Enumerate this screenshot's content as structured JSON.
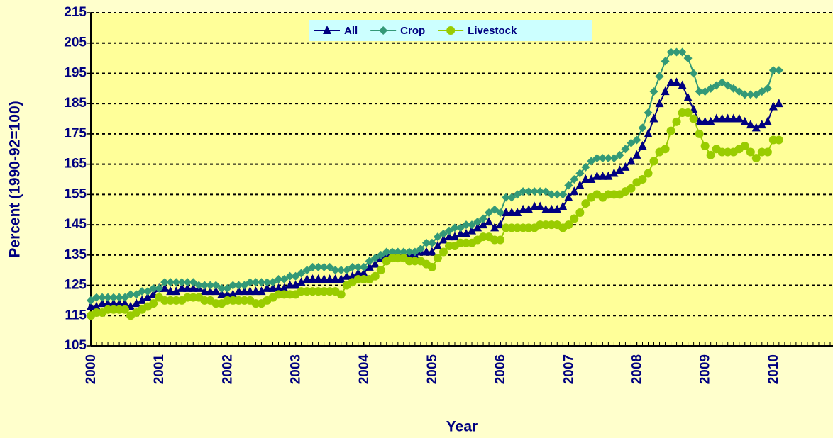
{
  "chart_data": {
    "type": "line",
    "ylabel": "Percent (1990-92=100)",
    "xlabel": "Year",
    "xlim": [
      2000,
      2010.875
    ],
    "xticks": [
      2000,
      2001,
      2002,
      2003,
      2004,
      2005,
      2006,
      2007,
      2008,
      2009,
      2010
    ],
    "ylim": [
      105,
      215
    ],
    "yticks": [
      105,
      115,
      125,
      135,
      145,
      155,
      165,
      175,
      185,
      195,
      205,
      215
    ],
    "grid": true,
    "legend": "top",
    "x": [
      2000,
      2000.083,
      2000.167,
      2000.25,
      2000.333,
      2000.417,
      2000.5,
      2000.583,
      2000.667,
      2000.75,
      2000.833,
      2000.917,
      2001,
      2001.083,
      2001.167,
      2001.25,
      2001.333,
      2001.417,
      2001.5,
      2001.583,
      2001.667,
      2001.75,
      2001.833,
      2001.917,
      2002,
      2002.083,
      2002.167,
      2002.25,
      2002.333,
      2002.417,
      2002.5,
      2002.583,
      2002.667,
      2002.75,
      2002.833,
      2002.917,
      2003,
      2003.083,
      2003.167,
      2003.25,
      2003.333,
      2003.417,
      2003.5,
      2003.583,
      2003.667,
      2003.75,
      2003.833,
      2003.917,
      2004,
      2004.083,
      2004.167,
      2004.25,
      2004.333,
      2004.417,
      2004.5,
      2004.583,
      2004.667,
      2004.75,
      2004.833,
      2004.917,
      2005,
      2005.083,
      2005.167,
      2005.25,
      2005.333,
      2005.417,
      2005.5,
      2005.583,
      2005.667,
      2005.75,
      2005.833,
      2005.917,
      2006,
      2006.083,
      2006.167,
      2006.25,
      2006.333,
      2006.417,
      2006.5,
      2006.583,
      2006.667,
      2006.75,
      2006.833,
      2006.917,
      2007,
      2007.083,
      2007.167,
      2007.25,
      2007.333,
      2007.417,
      2007.5,
      2007.583,
      2007.667,
      2007.75,
      2007.833,
      2007.917,
      2008,
      2008.083,
      2008.167,
      2008.25,
      2008.333,
      2008.417,
      2008.5,
      2008.583,
      2008.667,
      2008.75,
      2008.833,
      2008.917,
      2009,
      2009.083,
      2009.167,
      2009.25,
      2009.333,
      2009.417,
      2009.5,
      2009.583,
      2009.667,
      2009.75,
      2009.833,
      2009.917,
      2010,
      2010.083
    ],
    "series": [
      {
        "name": "All",
        "color": "#000080",
        "marker": "triangle",
        "values": [
          118,
          118,
          119,
          119,
          119,
          119,
          119,
          118,
          119,
          120,
          121,
          122,
          124,
          124,
          123,
          123,
          124,
          124,
          124,
          124,
          123,
          123,
          123,
          122,
          122,
          122,
          123,
          123,
          123,
          123,
          123,
          124,
          124,
          124,
          124,
          125,
          125,
          126,
          127,
          127,
          127,
          127,
          127,
          127,
          127,
          128,
          128,
          129,
          129,
          131,
          132,
          134,
          135,
          135,
          135,
          135,
          135,
          135,
          136,
          136,
          136,
          138,
          140,
          141,
          141,
          142,
          142,
          143,
          144,
          145,
          146,
          144,
          145,
          149,
          149,
          149,
          150,
          150,
          151,
          151,
          150,
          150,
          150,
          151,
          154,
          156,
          158,
          160,
          160,
          161,
          161,
          161,
          162,
          163,
          164,
          166,
          168,
          171,
          175,
          180,
          185,
          189,
          192,
          192,
          191,
          187,
          183,
          179,
          179,
          179,
          180,
          180,
          180,
          180,
          180,
          179,
          178,
          177,
          178,
          179,
          184,
          185
        ]
      },
      {
        "name": "Crop",
        "color": "#339977",
        "marker": "diamond",
        "values": [
          120,
          121,
          121,
          121,
          121,
          121,
          121,
          122,
          122,
          123,
          123,
          124,
          124,
          126,
          126,
          126,
          126,
          126,
          126,
          125,
          125,
          125,
          125,
          124,
          124,
          125,
          125,
          125,
          126,
          126,
          126,
          126,
          126,
          127,
          127,
          128,
          128,
          129,
          130,
          131,
          131,
          131,
          131,
          130,
          130,
          130,
          131,
          131,
          131,
          133,
          134,
          135,
          136,
          136,
          136,
          136,
          136,
          136,
          137,
          139,
          139,
          141,
          142,
          143,
          144,
          144,
          145,
          145,
          146,
          147,
          149,
          150,
          149,
          154,
          154,
          155,
          156,
          156,
          156,
          156,
          156,
          155,
          155,
          155,
          158,
          160,
          162,
          164,
          166,
          167,
          167,
          167,
          167,
          168,
          170,
          172,
          173,
          177,
          182,
          189,
          194,
          199,
          202,
          202,
          202,
          200,
          195,
          189,
          189,
          190,
          191,
          192,
          191,
          190,
          189,
          188,
          188,
          188,
          189,
          190,
          196,
          196
        ]
      },
      {
        "name": "Livestock",
        "color": "#99cc00",
        "marker": "circle",
        "values": [
          115,
          116,
          116,
          117,
          117,
          117,
          117,
          115,
          116,
          117,
          118,
          119,
          121,
          120,
          120,
          120,
          120,
          121,
          121,
          121,
          120,
          120,
          119,
          119,
          120,
          120,
          120,
          120,
          120,
          119,
          119,
          120,
          121,
          122,
          122,
          122,
          122,
          123,
          123,
          123,
          123,
          123,
          123,
          123,
          122,
          125,
          126,
          127,
          127,
          127,
          128,
          130,
          133,
          134,
          134,
          134,
          133,
          133,
          133,
          132,
          131,
          134,
          136,
          138,
          138,
          139,
          139,
          139,
          140,
          141,
          141,
          140,
          140,
          144,
          144,
          144,
          144,
          144,
          144,
          145,
          145,
          145,
          145,
          144,
          145,
          147,
          149,
          152,
          154,
          155,
          154,
          155,
          155,
          155,
          156,
          157,
          159,
          160,
          162,
          166,
          169,
          170,
          176,
          179,
          182,
          182,
          180,
          175,
          171,
          168,
          170,
          169,
          169,
          169,
          170,
          171,
          169,
          167,
          169,
          169,
          173,
          173
        ]
      }
    ]
  }
}
